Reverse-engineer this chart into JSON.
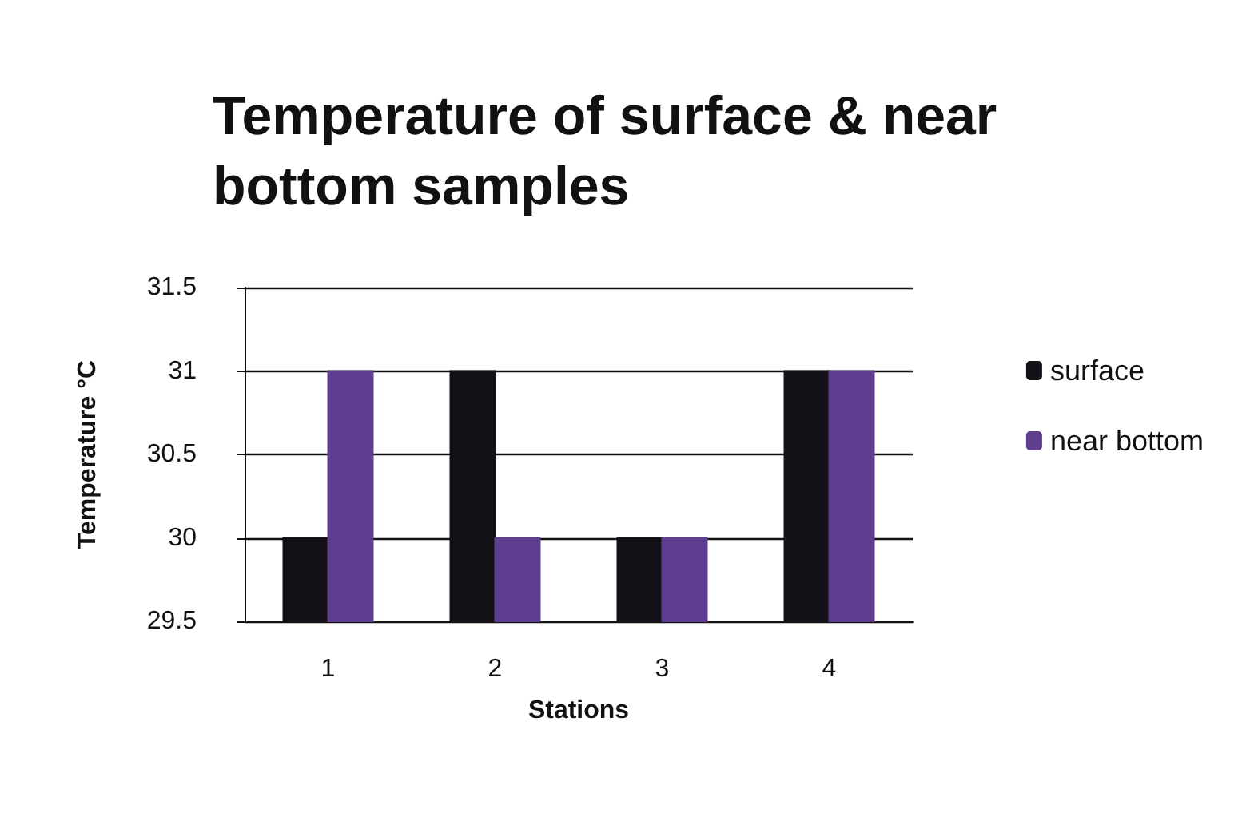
{
  "chart_data": {
    "type": "bar",
    "title": "Temperature of surface & near bottom samples",
    "xlabel": "Stations",
    "ylabel": "Temperature °C",
    "categories": [
      "1",
      "2",
      "3",
      "4"
    ],
    "series": [
      {
        "name": "surface",
        "color": "#141218",
        "values": [
          30,
          31,
          30,
          31
        ]
      },
      {
        "name": "near bottom",
        "color": "#5e3f8f",
        "values": [
          31,
          30,
          30,
          31
        ]
      }
    ],
    "ylim": [
      29.5,
      31.5
    ],
    "yticks": [
      29.5,
      30,
      30.5,
      31,
      31.5
    ],
    "grid": "y",
    "legend": "right"
  }
}
